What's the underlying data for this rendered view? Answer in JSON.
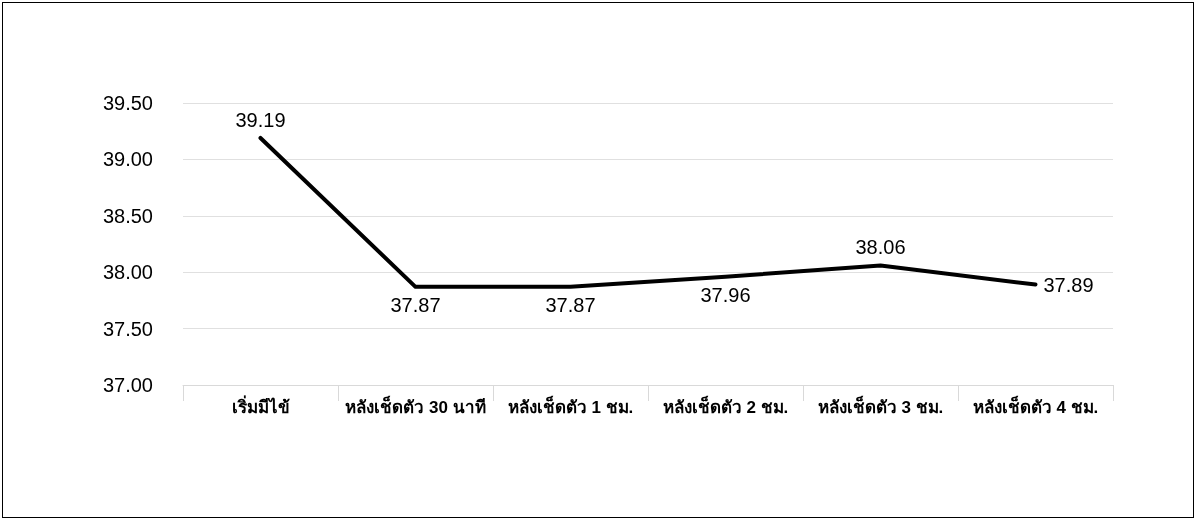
{
  "chart_data": {
    "type": "line",
    "categories": [
      "เริ่มมีไข้",
      "หลังเช็ดตัว 30 นาที",
      "หลังเช็ดตัว 1 ชม.",
      "หลังเช็ดตัว 2 ชม.",
      "หลังเช็ดตัว 3 ชม.",
      "หลังเช็ดตัว 4 ชม."
    ],
    "series": [
      {
        "color": "#000000",
        "values": [
          39.19,
          37.87,
          37.87,
          37.96,
          38.06,
          37.89
        ]
      }
    ],
    "ylim": [
      37,
      39.5
    ],
    "yticks": [
      {
        "value": 37,
        "label": "37.00"
      },
      {
        "value": 37.5,
        "label": "37.50"
      },
      {
        "value": 38,
        "label": "38.00"
      },
      {
        "value": 38.5,
        "label": "38.50"
      },
      {
        "value": 39,
        "label": "39.00"
      },
      {
        "value": 39.5,
        "label": "39.50"
      }
    ],
    "grid": "y",
    "data_labels": true,
    "marker": "none",
    "line_style": "solid"
  }
}
